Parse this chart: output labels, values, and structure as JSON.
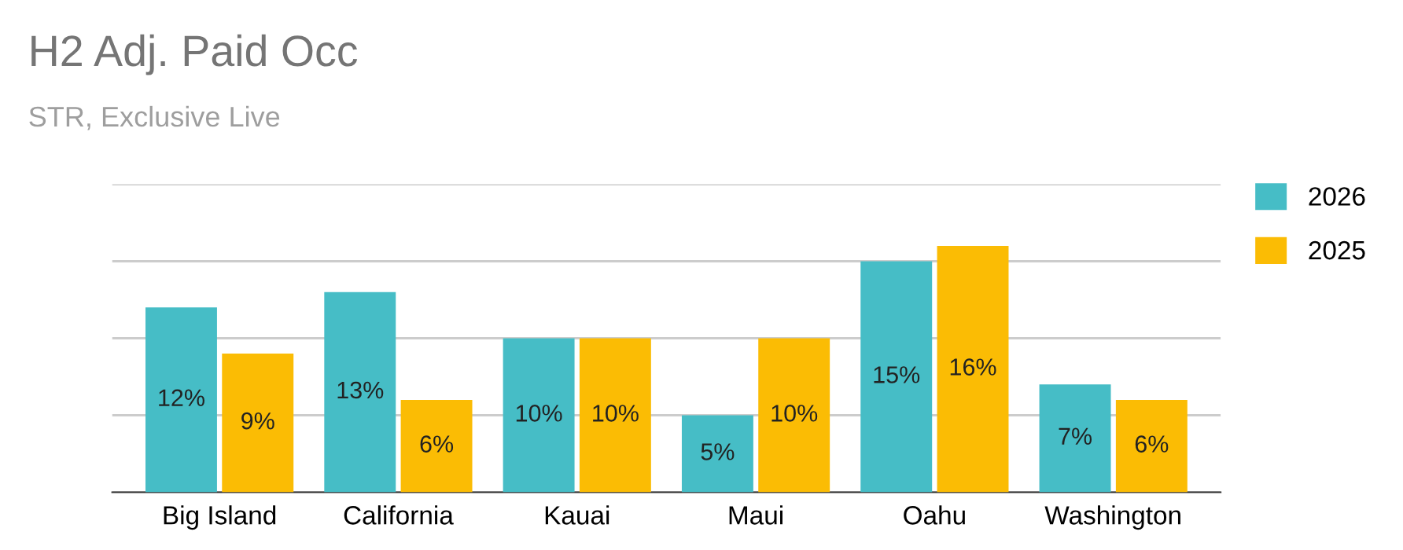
{
  "chart_data": {
    "type": "bar",
    "title": "H2 Adj. Paid Occ",
    "subtitle": "STR, Exclusive Live",
    "categories": [
      "Big Island",
      "California",
      "Kauai",
      "Maui",
      "Oahu",
      "Washington"
    ],
    "series": [
      {
        "name": "2026",
        "color": "#46bdc6",
        "values": [
          12,
          13,
          10,
          5,
          15,
          7
        ],
        "value_labels": [
          "12%",
          "13%",
          "10%",
          "5%",
          "15%",
          "7%"
        ]
      },
      {
        "name": "2025",
        "color": "#fbbc04",
        "values": [
          9,
          6,
          10,
          10,
          16,
          6
        ],
        "value_labels": [
          "9%",
          "6%",
          "10%",
          "10%",
          "16%",
          "6%"
        ]
      }
    ],
    "ylim": [
      0,
      20
    ],
    "yticks": [
      {
        "value": 0,
        "label": null
      },
      {
        "value": 5,
        "label": null
      },
      {
        "value": 10,
        "label": null
      },
      {
        "value": 15,
        "label": null
      },
      {
        "value": 20,
        "label": null
      }
    ],
    "tick_labels": "x",
    "grid": "y",
    "legend": "right"
  }
}
